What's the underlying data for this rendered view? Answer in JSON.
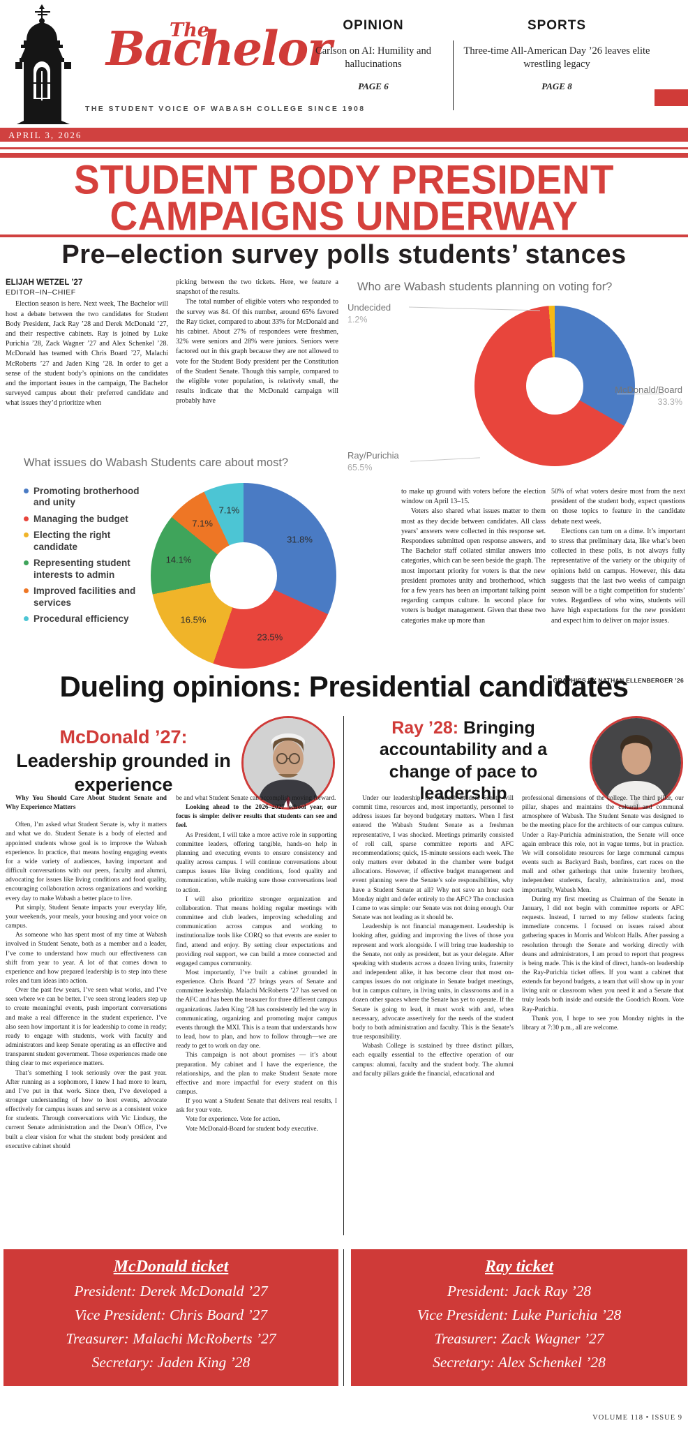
{
  "masthead": {
    "title_the": "The",
    "title_main": "Bachelor",
    "tagline": "THE STUDENT VOICE OF WABASH COLLEGE SINCE 1908",
    "date": "APRIL 3, 2026",
    "teasers": [
      {
        "section": "OPINION",
        "headline": "Carlson on AI: Humility and hallucinations",
        "page": "PAGE 6"
      },
      {
        "section": "SPORTS",
        "headline": "Three-time All-American Day ’26 leaves elite wrestling legacy",
        "page": "PAGE 8"
      }
    ]
  },
  "lead_story": {
    "headline": "STUDENT BODY PRESIDENT CAMPAIGNS UNDERWAY",
    "subheadline": "Pre–election survey polls students’ stances",
    "byline": {
      "author": "ELIJAH WETZEL ’27",
      "role": "EDITOR–IN–CHIEF"
    },
    "columns": {
      "c1": [
        "Election season is here. Next week, The Bachelor will host a debate between the two candidates for Student Body President, Jack Ray ’28 and Derek McDonald ’27, and their respective cabinets. Ray is joined by Luke Purichia ’28, Zack Wagner ’27 and Alex Schenkel ’28. McDonald has teamed with Chris Board ’27, Malachi McRoberts ’27 and Jaden King ’28. In order to get a sense of the student body’s opinions on the candidates and the important issues in the campaign, The Bachelor surveyed campus about their preferred candidate and what issues they’d prioritize when"
      ],
      "c2": [
        {
          "flush": true,
          "text": "picking between the two tickets. Here, we feature a snapshot of the results."
        },
        "The total number of eligible voters who responded to the survey was 84. Of this number, around 65% favored the Ray ticket, compared to about 33% for McDonald and his cabinet. About 27% of respondees were freshmen, 32% were seniors and 28% were juniors. Seniors were factored out in this graph because they are not allowed to vote for the Student Body president per the Constitution of the Student Senate. Though this sample, compared to the eligible voter population, is relatively small, the results indicate that the McDonald campaign will probably have"
      ],
      "c3": [
        {
          "flush": true,
          "text": "to make up ground with voters before the election window on April 13–15."
        },
        "Voters also shared what issues matter to them most as they decide between candidates. All class years’ answers were collected in this response set. Respondees submitted open response answers, and The Bachelor staff collated similar answers into categories, which can be seen beside the graph. The most important priority for voters is that the new president promotes unity and brotherhood, which for a few years has been an important talking point regarding campus culture. In second place for voters is budget management. Given that these two categories make up more than"
      ],
      "c4": [
        {
          "flush": true,
          "text": "50% of what voters desire most from the next president of the student body, expect questions on those topics to feature in the candidate debate next week."
        },
        "Elections can turn on a dime. It’s important to stress that preliminary data, like what’s been collected in these polls, is not always fully representative of the variety or the ubiquity of opinions held on campus. However, this data suggests that the last two weeks of campaign season will be a tight competition for students’ votes. Regardless of who wins, students will have high expectations for the new president and expect him to deliver on major issues."
      ]
    },
    "credit": "GRAPHICS BY NATHAN ELLENBERGER ’26"
  },
  "chart_data": [
    {
      "type": "pie",
      "donut": true,
      "title": "Who are Wabash students planning on voting for?",
      "labels": [
        "McDonald/Board",
        "Ray/Purichia",
        "Undecided"
      ],
      "values": [
        33.3,
        65.5,
        1.2
      ],
      "colors": [
        "#4a7bc4",
        "#e8453c",
        "#f5b915"
      ],
      "legend_position": "outside-callouts",
      "callouts": {
        "undecided_name": "Undecided",
        "undecided_pct": "1.2%",
        "mcdonald_name": "McDonald/Board",
        "mcdonald_pct": "33.3%",
        "ray_name": "Ray/Purichia",
        "ray_pct": "65.5%"
      }
    },
    {
      "type": "pie",
      "donut": true,
      "title": "What issues do Wabash Students care about most?",
      "labels": [
        "Promoting brotherhood and unity",
        "Managing the budget",
        "Electing the right candidate",
        "Representing student interests to admin",
        "Improved facilities and services",
        "Procedural efficiency"
      ],
      "values": [
        31.8,
        23.5,
        16.5,
        14.1,
        7.1,
        7.1
      ],
      "colors": [
        "#4a7bc4",
        "#e8453c",
        "#f0b429",
        "#3fa45b",
        "#ee7625",
        "#4cc5d4"
      ],
      "slice_labels": [
        "31.8%",
        "23.5%",
        "16.5%",
        "14.1%",
        "7.1%",
        "7.1%"
      ],
      "legend_position": "left"
    }
  ],
  "opinions": {
    "section_headline": "Dueling opinions: Presidential candidates",
    "mcdonald": {
      "kicker": "McDonald ’27:",
      "headline": "Leadership grounded in experience",
      "subhead": "Why You Should Care About Student Senate and Why Experience Matters",
      "col1": [
        "Often, I’m asked what Student Senate is, why it matters and what we do. Student Senate is a body of elected and appointed students whose goal is to improve the Wabash experience. In practice, that means hosting engaging events for a wide variety of audiences, having important and difficult conversations with our peers, faculty and alumni, advocating for issues like living conditions and food quality, encouraging collaboration across organizations and working every day to make Wabash a better place to live.",
        "Put simply, Student Senate impacts your everyday life, your weekends, your meals, your housing and your voice on campus.",
        "As someone who has spent most of my time at Wabash involved in Student Senate, both as a member and a leader, I’ve come to understand how much our effectiveness can shift from year to year. A lot of that comes down to experience and how prepared leadership is to step into these roles and turn ideas into action.",
        "Over the past few years, I’ve seen what works, and I’ve seen where we can be better. I’ve seen strong leaders step up to create meaningful events, push important conversations and make a real difference in the student experience. I’ve also seen how important it is for leadership to come in ready; ready to engage with students, work with faculty and administrators and keep Senate operating as an effective and transparent student government. Those experiences made one thing clear to me: experience matters.",
        "That’s something I took seriously over the past year. After running as a sophomore, I knew I had more to learn, and I’ve put in that work. Since then, I’ve developed a stronger understanding of how to host events, advocate effectively for campus issues and serve as a consistent voice for students. Through conversations with Vic Lindsay, the current Senate administration and the Dean’s Office, I’ve built a clear vision for what the student body president and executive cabinet should"
      ],
      "col2": [
        {
          "flush": true,
          "text": "be and what Student Senate can accomplish moving forward."
        },
        {
          "bold": true,
          "text": "Looking ahead to the 2026–2027 school year, our focus is simple: deliver results that students can see and feel."
        },
        "As President, I will take a more active role in supporting committee leaders, offering tangible, hands-on help in planning and executing events to ensure consistency and quality across campus. I will continue conversations about campus issues like living conditions, food quality and communication, while making sure those conversations lead to action.",
        "I will also prioritize stronger organization and collaboration. That means holding regular meetings with committee and club leaders, improving scheduling and communication across campus and working to institutionalize tools like CORQ so that events are easier to find, attend and enjoy. By setting clear expectations and providing real support, we can build a more connected and engaged campus community.",
        "Most importantly, I’ve built a cabinet grounded in experience. Chris Board ’27 brings years of Senate and committee leadership. Malachi McRoberts ’27 has served on the AFC and has been the treasurer for three different campus organizations. Jaden King ’28 has consistently led the way in communicating, organizing and promoting major campus events through the MXI. This is a team that understands how to lead, how to plan, and how to follow through—we are ready to get to work on day one.",
        "This campaign is not about promises — it’s about preparation. My cabinet and I have the experience, the relationships, and the plan to make Student Senate more effective and more impactful for every student on this campus.",
        "If you want a Student Senate that delivers real results, I ask for your vote.",
        "Vote for experience. Vote for action.",
        "Vote McDonald-Board for student body executive."
      ]
    },
    "ray": {
      "kicker": "Ray ’28:",
      "headline": "Bringing accountability and a change of pace to leadership",
      "col1": [
        "Under our leadership, the Wabash Student Senate will commit time, resources and, most importantly, personnel to address issues far beyond budgetary matters. When I first entered the Wabash Student Senate as a freshman representative, I was shocked. Meetings primarily consisted of roll call, sparse committee reports and AFC recommendations; quick, 15-minute sessions each week. The only matters ever debated in the chamber were budget allocations. However, if effective budget management and event planning were the Senate’s sole responsibilities, why have a Student Senate at all? Why not save an hour each Monday night and defer entirely to the AFC? The conclusion I came to was simple: our Senate was not doing enough. Our Senate was not leading as it should be.",
        "Leadership is not financial management. Leadership is looking after, guiding and improving the lives of those you represent and work alongside. I will bring true leadership to the Senate, not only as president, but as your delegate. After speaking with students across a dozen living units, fraternity and independent alike, it has become clear that most on-campus issues do not originate in Senate budget meetings, but in campus culture, in living units, in classrooms and in a dozen other spaces where the Senate has yet to operate. If the Senate is going to lead, it must work with and, when necessary, advocate assertively for the needs of the student body to both administration and faculty. This is the Senate’s true responsibility.",
        "Wabash College is sustained by three distinct pillars, each equally essential to the effective operation of our campus: alumni, faculty and the student body. The alumni and faculty pillars guide the financial, educational and"
      ],
      "col2": [
        {
          "flush": true,
          "text": "professional dimensions of the college. The third pillar, our pillar, shapes and maintains the cultural and communal atmosphere of Wabash. The Student Senate was designed to be the meeting place for the architects of our campus culture. Under a Ray-Purichia administration, the Senate will once again embrace this role, not in vague terms, but in practice. We will consolidate resources for large communal campus events such as Backyard Bash, bonfires, cart races on the mall and other gatherings that unite fraternity brothers, independent students, faculty, administration and, most importantly, Wabash Men."
        },
        "During my first meeting as Chairman of the Senate in January, I did not begin with committee reports or AFC requests. Instead, I turned to my fellow students facing immediate concerns. I focused on issues raised about gathering spaces in Morris and Wolcott Halls. After passing a resolution through the Senate and working directly with deans and administrators, I am proud to report that progress is being made. This is the kind of direct, hands-on leadership the Ray-Purichia ticket offers. If you want a cabinet that extends far beyond budgets, a team that will show up in your living unit or classroom when you need it and a Senate that truly leads both inside and outside the Goodrich Room. Vote Ray-Purichia.",
        "Thank you, I hope to see you Monday nights in the library at 7:30 p.m., all are welcome."
      ]
    }
  },
  "tickets": [
    {
      "title": "McDonald ticket",
      "rows": [
        "President: Derek McDonald ’27",
        "Vice President: Chris Board ’27",
        "Treasurer: Malachi McRoberts ’27",
        "Secretary: Jaden King ’28"
      ]
    },
    {
      "title": "Ray ticket",
      "rows": [
        "President: Jack Ray ’28",
        "Vice President: Luke Purichia ’28",
        "Treasurer: Zack Wagner ’27",
        "Secretary: Alex Schenkel ’28"
      ]
    }
  ],
  "footer": {
    "volume_issue": "VOLUME 118 • ISSUE 9"
  },
  "colors": {
    "brand_red": "#d03b38",
    "headline_red": "#d5403c",
    "ink": "#1c1c1c"
  }
}
